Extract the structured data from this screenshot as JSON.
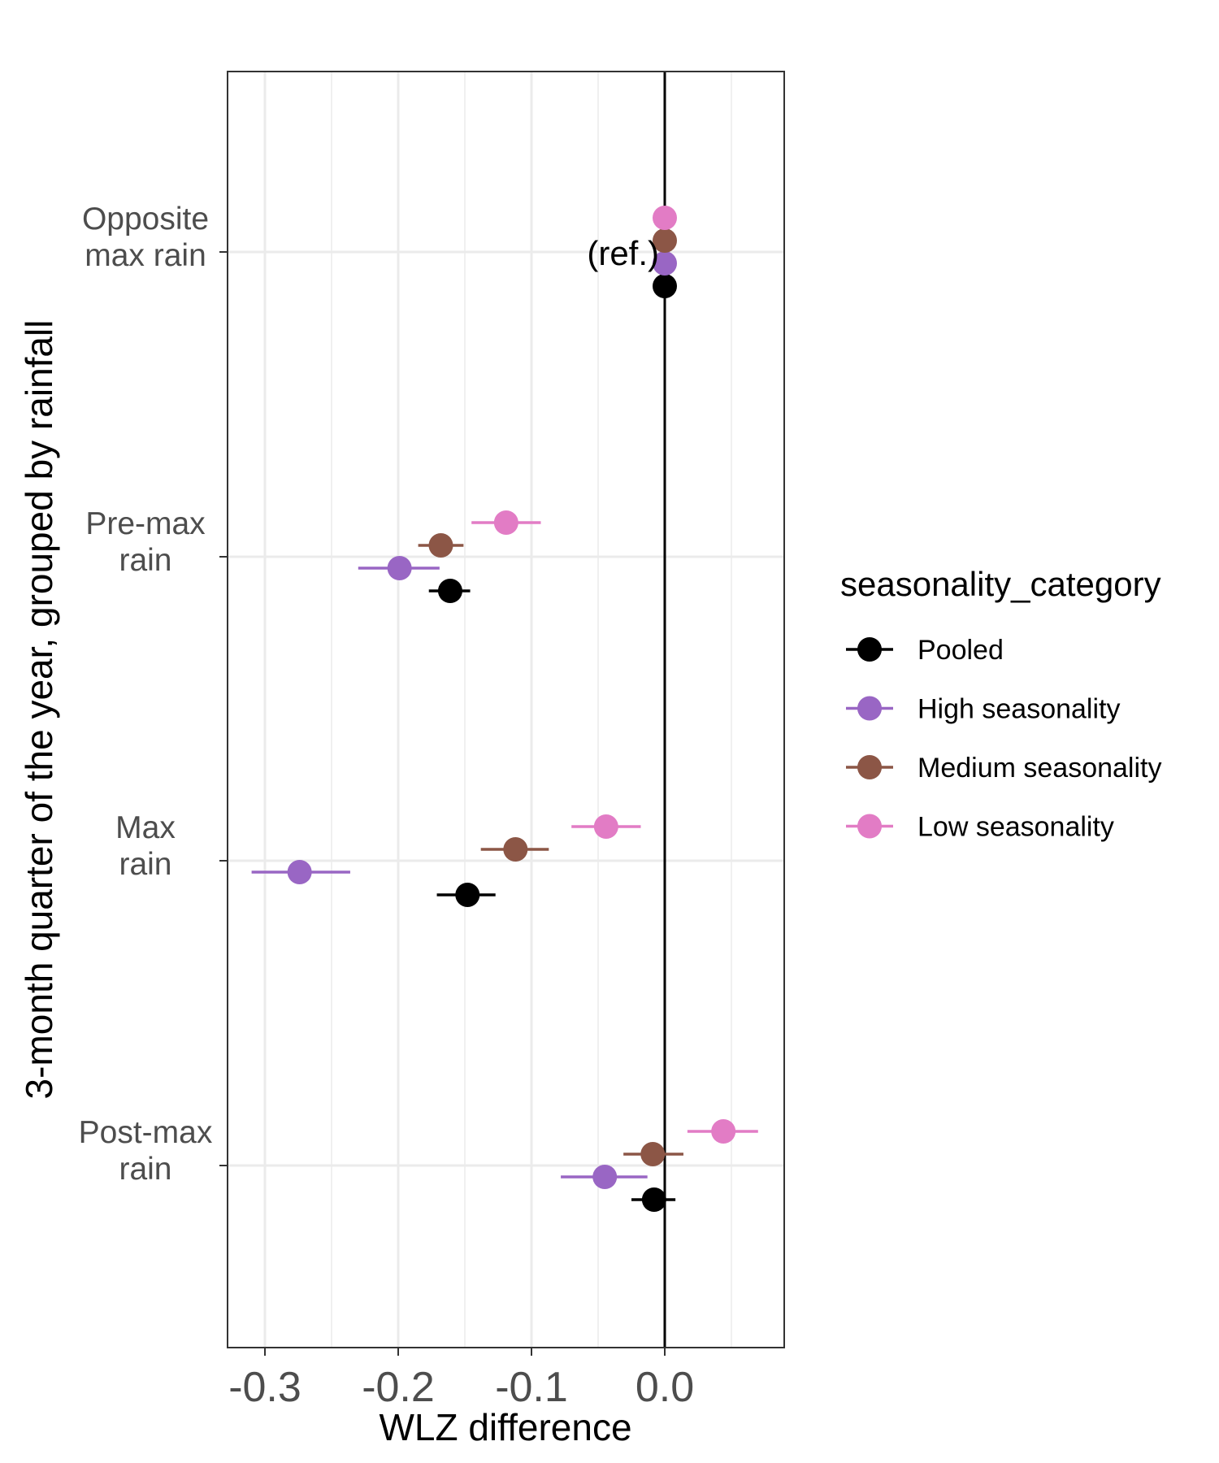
{
  "chart_data": {
    "type": "scatter",
    "xlabel": "WLZ difference",
    "ylabel": "3-month quarter of the year, grouped by rainfall",
    "xlim": [
      -0.33,
      0.088
    ],
    "xticks": [
      -0.3,
      -0.2,
      -0.1,
      0.0
    ],
    "xtick_labels": [
      "-0.3",
      "-0.2",
      "-0.1",
      "0.0"
    ],
    "categories": [
      [
        "Opposite",
        "max rain"
      ],
      [
        "Pre-max",
        "rain"
      ],
      [
        "Max",
        "rain"
      ],
      [
        "Post-max",
        "rain"
      ]
    ],
    "reference_line_x": 0.0,
    "annotation": {
      "text": "(ref.)",
      "category_index": 0
    },
    "grid": true,
    "legend": {
      "title": "seasonality_category",
      "placement": "right"
    },
    "series": [
      {
        "name": "Pooled",
        "color": "#000000",
        "points": [
          {
            "est": 0.0,
            "lo": 0.0,
            "hi": 0.0
          },
          {
            "est": -0.161,
            "lo": -0.177,
            "hi": -0.146
          },
          {
            "est": -0.148,
            "lo": -0.171,
            "hi": -0.127
          },
          {
            "est": -0.008,
            "lo": -0.025,
            "hi": 0.008
          }
        ]
      },
      {
        "name": "High seasonality",
        "color": "#9966c4",
        "points": [
          {
            "est": 0.0,
            "lo": 0.0,
            "hi": 0.0
          },
          {
            "est": -0.199,
            "lo": -0.23,
            "hi": -0.169
          },
          {
            "est": -0.274,
            "lo": -0.31,
            "hi": -0.236
          },
          {
            "est": -0.045,
            "lo": -0.078,
            "hi": -0.013
          }
        ]
      },
      {
        "name": "Medium seasonality",
        "color": "#8c5646",
        "points": [
          {
            "est": 0.0,
            "lo": 0.0,
            "hi": 0.0
          },
          {
            "est": -0.168,
            "lo": -0.185,
            "hi": -0.151
          },
          {
            "est": -0.112,
            "lo": -0.138,
            "hi": -0.087
          },
          {
            "est": -0.009,
            "lo": -0.031,
            "hi": 0.014
          }
        ]
      },
      {
        "name": "Low seasonality",
        "color": "#e27cc5",
        "points": [
          {
            "est": 0.0,
            "lo": 0.0,
            "hi": 0.0
          },
          {
            "est": -0.119,
            "lo": -0.145,
            "hi": -0.093
          },
          {
            "est": -0.044,
            "lo": -0.07,
            "hi": -0.018
          },
          {
            "est": 0.044,
            "lo": 0.017,
            "hi": 0.07
          }
        ]
      }
    ]
  }
}
